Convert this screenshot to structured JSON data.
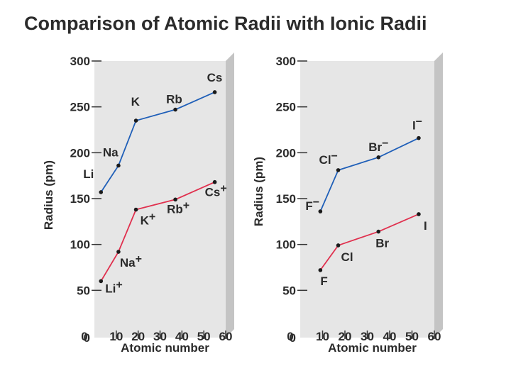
{
  "title": "Comparison of Atomic Radii with Ionic Radii",
  "colors": {
    "atomic": "#1f5fb8",
    "ionic": "#e0304e",
    "panel": "#e6e6e6",
    "panel_side": "#c4c4c4"
  },
  "chart_data": [
    {
      "type": "line",
      "ylabel": "Radius (pm)",
      "xlabel": "Atomic number",
      "xlim": [
        0,
        60
      ],
      "ylim": [
        0,
        300
      ],
      "x_ticks": [
        "0",
        "10",
        "20",
        "30",
        "40",
        "50",
        "60"
      ],
      "y_ticks": [
        "0",
        "50",
        "100",
        "150",
        "200",
        "250",
        "300"
      ],
      "series": [
        {
          "key": "atomic",
          "points": [
            {
              "label": "Li",
              "x": 3,
              "y": 157
            },
            {
              "label": "Na",
              "x": 11,
              "y": 186
            },
            {
              "label": "K",
              "x": 19,
              "y": 235
            },
            {
              "label": "Rb",
              "x": 37,
              "y": 247
            },
            {
              "label": "Cs",
              "x": 55,
              "y": 266
            }
          ]
        },
        {
          "key": "ionic",
          "points": [
            {
              "label": "Li+",
              "x": 3,
              "y": 60
            },
            {
              "label": "Na+",
              "x": 11,
              "y": 92
            },
            {
              "label": "K+",
              "x": 19,
              "y": 138
            },
            {
              "label": "Rb+",
              "x": 37,
              "y": 149
            },
            {
              "label": "Cs+",
              "x": 55,
              "y": 168
            }
          ]
        }
      ]
    },
    {
      "type": "line",
      "ylabel": "Radius (pm)",
      "xlabel": "Atomic number",
      "xlim": [
        0,
        60
      ],
      "ylim": [
        0,
        300
      ],
      "x_ticks": [
        "0",
        "10",
        "20",
        "30",
        "40",
        "50",
        "60"
      ],
      "y_ticks": [
        "0",
        "50",
        "100",
        "150",
        "200",
        "250",
        "300"
      ],
      "series": [
        {
          "key": "atomic",
          "points": [
            {
              "label": "F−",
              "x": 9,
              "y": 136
            },
            {
              "label": "Cl−",
              "x": 17,
              "y": 181
            },
            {
              "label": "Br−",
              "x": 35,
              "y": 195
            },
            {
              "label": "I−",
              "x": 53,
              "y": 216
            }
          ]
        },
        {
          "key": "ionic",
          "points": [
            {
              "label": "F",
              "x": 9,
              "y": 72
            },
            {
              "label": "Cl",
              "x": 17,
              "y": 99
            },
            {
              "label": "Br",
              "x": 35,
              "y": 114
            },
            {
              "label": "I",
              "x": 53,
              "y": 133
            }
          ]
        }
      ]
    }
  ]
}
